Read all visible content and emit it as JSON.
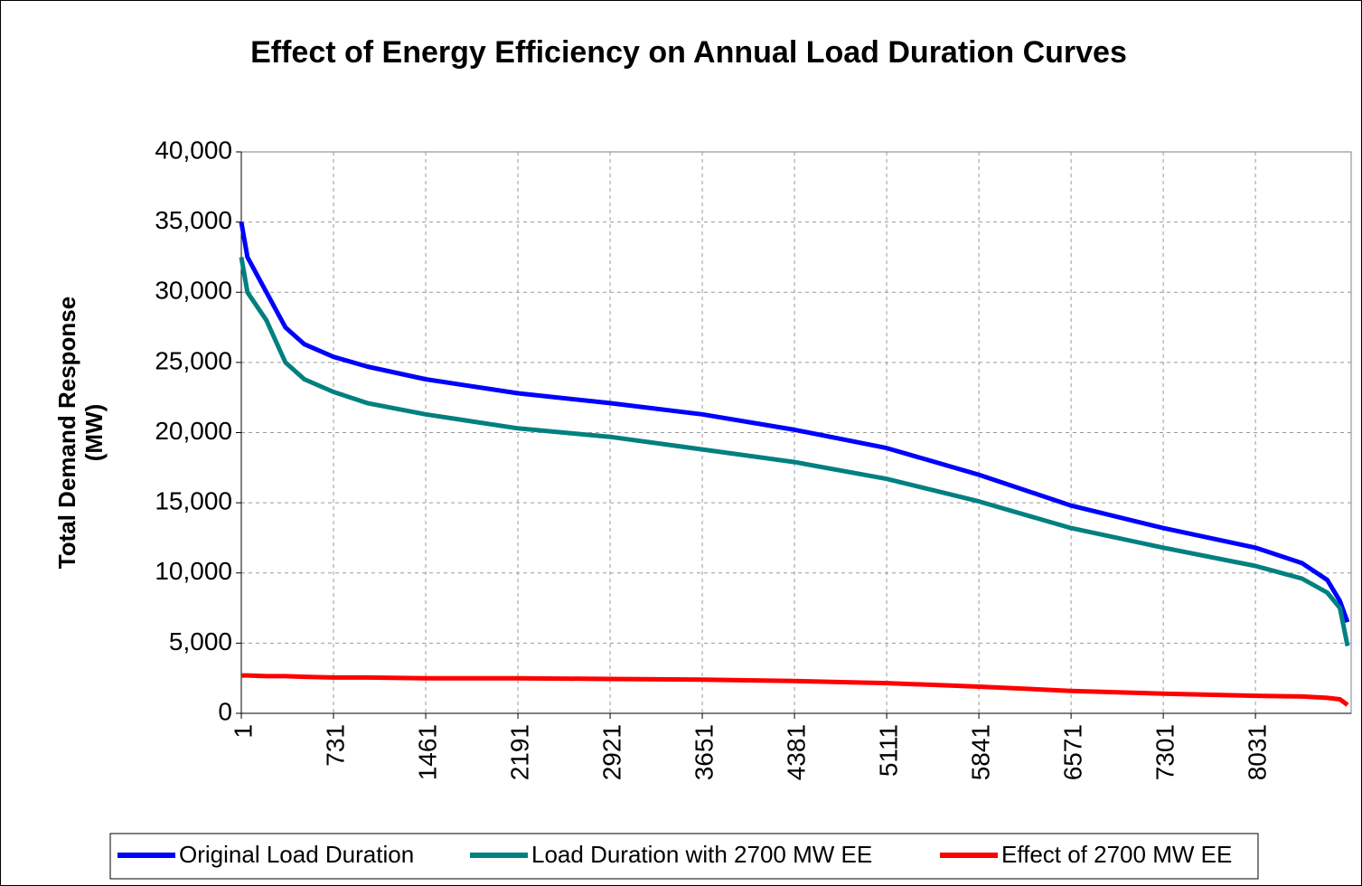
{
  "chart_data": {
    "type": "line",
    "title": "Effect of Energy Efficiency on Annual Load Duration Curves",
    "ylabel": [
      "Total Demand Response",
      "(MW)"
    ],
    "x": [
      1,
      50,
      200,
      350,
      500,
      731,
      1000,
      1461,
      2191,
      2921,
      3651,
      4381,
      5111,
      5841,
      6571,
      7301,
      8031,
      8400,
      8600,
      8700,
      8760
    ],
    "series": [
      {
        "name": "Original Load Duration",
        "color": "#0000ff",
        "values": [
          35000,
          32500,
          30000,
          27500,
          26300,
          25400,
          24700,
          23800,
          22800,
          22100,
          21300,
          20200,
          18900,
          17000,
          14800,
          13200,
          11800,
          10700,
          9500,
          8000,
          6500
        ]
      },
      {
        "name": "Load Duration with 2700 MW EE",
        "color": "#008080",
        "values": [
          32500,
          30000,
          28000,
          25000,
          23800,
          22900,
          22100,
          21300,
          20300,
          19700,
          18800,
          17900,
          16700,
          15100,
          13200,
          11800,
          10500,
          9600,
          8600,
          7500,
          4800
        ]
      },
      {
        "name": "Effect of 2700 MW EE",
        "color": "#ff0000",
        "values": [
          2700,
          2700,
          2650,
          2650,
          2600,
          2550,
          2550,
          2500,
          2500,
          2450,
          2400,
          2300,
          2150,
          1900,
          1600,
          1400,
          1250,
          1200,
          1100,
          1000,
          600
        ]
      }
    ],
    "xlim": [
      1,
      8760
    ],
    "xticks": [
      1,
      731,
      1461,
      2191,
      2921,
      3651,
      4381,
      5111,
      5841,
      6571,
      7301,
      8031
    ],
    "ylim": [
      0,
      40000
    ],
    "yticks": [
      0,
      {
        "value": 5000,
        "label": "5,000"
      },
      {
        "value": 10000,
        "label": "10,000"
      },
      {
        "value": 15000,
        "label": "15,000"
      },
      {
        "value": 20000,
        "label": "20,000"
      },
      {
        "value": 25000,
        "label": "25,000"
      },
      {
        "value": 30000,
        "label": "30,000"
      },
      {
        "value": 35000,
        "label": "35,000"
      },
      {
        "value": 40000,
        "label": "40,000"
      }
    ],
    "grid": true,
    "legend": "bottom"
  }
}
